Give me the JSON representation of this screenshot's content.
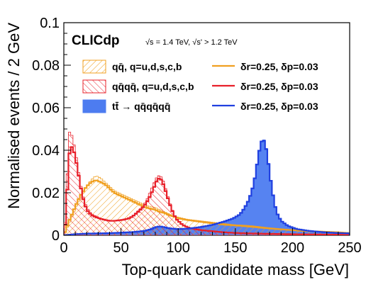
{
  "chart_data": {
    "type": "histogram",
    "title": "",
    "experiment_label": "CLICdp",
    "energy_text": "√s = 1.4 TeV, √s' > 1.2 TeV",
    "xlabel": "Top-quark candidate mass [GeV]",
    "ylabel": "Normalised events / 2 GeV",
    "xlim": [
      0,
      250
    ],
    "ylim": [
      0,
      0.1
    ],
    "bin_width": 2,
    "x_ticks": [
      0,
      50,
      100,
      150,
      200,
      250
    ],
    "x_tick_labels": [
      "0",
      "50",
      "100",
      "150",
      "200",
      "250"
    ],
    "y_ticks": [
      0,
      0.02,
      0.04,
      0.06,
      0.08,
      0.1
    ],
    "y_tick_labels": [
      "0",
      "0.02",
      "0.04",
      "0.06",
      "0.08",
      "0.1"
    ],
    "grid": false,
    "legend_position": "top",
    "legend": [
      {
        "label": "qq̄, q=u,d,s,c,b",
        "style": "hatch",
        "color": "#f0a020"
      },
      {
        "label": "qq̄qq̄, q=u,d,s,c,b",
        "style": "hatch",
        "color": "#e8202a"
      },
      {
        "label": "tt̄ → qq̄qq̄qq̄",
        "style": "fill",
        "color": "#4d7cf0"
      },
      {
        "label": "δr=0.25, δp=0.03",
        "style": "line",
        "color": "#f0a020"
      },
      {
        "label": "δr=0.25, δp=0.03",
        "style": "line",
        "color": "#e8202a"
      },
      {
        "label": "δr=0.25, δp=0.03",
        "style": "line",
        "color": "#2040e0"
      }
    ],
    "series": [
      {
        "name": "qq̄, q=u,d,s,c,b",
        "color": "#f0a020",
        "points": [
          [
            0,
            0.0
          ],
          [
            4,
            0.005
          ],
          [
            8,
            0.01
          ],
          [
            12,
            0.015
          ],
          [
            16,
            0.019
          ],
          [
            20,
            0.023
          ],
          [
            24,
            0.026
          ],
          [
            28,
            0.028
          ],
          [
            32,
            0.027
          ],
          [
            36,
            0.025
          ],
          [
            40,
            0.023
          ],
          [
            44,
            0.021
          ],
          [
            48,
            0.02
          ],
          [
            52,
            0.019
          ],
          [
            56,
            0.018
          ],
          [
            60,
            0.017
          ],
          [
            64,
            0.016
          ],
          [
            68,
            0.015
          ],
          [
            72,
            0.014
          ],
          [
            76,
            0.0135
          ],
          [
            80,
            0.013
          ],
          [
            84,
            0.012
          ],
          [
            88,
            0.011
          ],
          [
            92,
            0.01
          ],
          [
            96,
            0.009
          ],
          [
            100,
            0.0085
          ],
          [
            108,
            0.0075
          ],
          [
            116,
            0.007
          ],
          [
            124,
            0.0065
          ],
          [
            132,
            0.006
          ],
          [
            140,
            0.0055
          ],
          [
            148,
            0.005
          ],
          [
            156,
            0.0048
          ],
          [
            164,
            0.0045
          ],
          [
            172,
            0.004
          ],
          [
            180,
            0.0035
          ],
          [
            190,
            0.003
          ],
          [
            200,
            0.0026
          ],
          [
            210,
            0.0022
          ],
          [
            220,
            0.002
          ],
          [
            230,
            0.0018
          ],
          [
            240,
            0.0015
          ],
          [
            250,
            0.0012
          ]
        ],
        "line_points": [
          [
            0,
            0.0
          ],
          [
            4,
            0.006
          ],
          [
            8,
            0.011
          ],
          [
            12,
            0.016
          ],
          [
            16,
            0.02
          ],
          [
            20,
            0.023
          ],
          [
            24,
            0.025
          ],
          [
            28,
            0.026
          ],
          [
            32,
            0.025
          ],
          [
            36,
            0.024
          ],
          [
            40,
            0.022
          ],
          [
            44,
            0.02
          ],
          [
            48,
            0.019
          ],
          [
            52,
            0.018
          ],
          [
            56,
            0.017
          ],
          [
            60,
            0.016
          ],
          [
            64,
            0.015
          ],
          [
            68,
            0.014
          ],
          [
            72,
            0.013
          ],
          [
            76,
            0.0125
          ],
          [
            80,
            0.012
          ],
          [
            84,
            0.011
          ],
          [
            88,
            0.0105
          ],
          [
            92,
            0.0095
          ],
          [
            96,
            0.0088
          ],
          [
            100,
            0.008
          ],
          [
            108,
            0.0072
          ],
          [
            116,
            0.0066
          ],
          [
            124,
            0.006
          ],
          [
            132,
            0.0055
          ],
          [
            140,
            0.005
          ],
          [
            148,
            0.0047
          ],
          [
            156,
            0.0044
          ],
          [
            164,
            0.004
          ],
          [
            172,
            0.0036
          ],
          [
            180,
            0.0032
          ],
          [
            190,
            0.0028
          ],
          [
            200,
            0.0024
          ],
          [
            210,
            0.002
          ],
          [
            220,
            0.0018
          ],
          [
            230,
            0.0016
          ],
          [
            240,
            0.0014
          ],
          [
            250,
            0.001
          ]
        ]
      },
      {
        "name": "qq̄qq̄, q=u,d,s,c,b",
        "color": "#e8202a",
        "points": [
          [
            0,
            0.002
          ],
          [
            2,
            0.01
          ],
          [
            4,
            0.048
          ],
          [
            6,
            0.049
          ],
          [
            8,
            0.045
          ],
          [
            10,
            0.04
          ],
          [
            12,
            0.033
          ],
          [
            14,
            0.026
          ],
          [
            16,
            0.02
          ],
          [
            18,
            0.016
          ],
          [
            20,
            0.013
          ],
          [
            24,
            0.01
          ],
          [
            28,
            0.009
          ],
          [
            32,
            0.008
          ],
          [
            36,
            0.0075
          ],
          [
            40,
            0.007
          ],
          [
            44,
            0.007
          ],
          [
            48,
            0.0072
          ],
          [
            52,
            0.0075
          ],
          [
            56,
            0.008
          ],
          [
            60,
            0.009
          ],
          [
            64,
            0.011
          ],
          [
            68,
            0.013
          ],
          [
            72,
            0.016
          ],
          [
            76,
            0.021
          ],
          [
            80,
            0.026
          ],
          [
            82,
            0.028
          ],
          [
            84,
            0.028
          ],
          [
            86,
            0.027
          ],
          [
            88,
            0.024
          ],
          [
            90,
            0.02
          ],
          [
            94,
            0.013
          ],
          [
            98,
            0.008
          ],
          [
            104,
            0.005
          ],
          [
            110,
            0.0035
          ],
          [
            120,
            0.0025
          ],
          [
            130,
            0.002
          ],
          [
            140,
            0.0015
          ],
          [
            150,
            0.0012
          ],
          [
            160,
            0.001
          ],
          [
            170,
            0.0009
          ],
          [
            180,
            0.0008
          ],
          [
            200,
            0.0006
          ],
          [
            220,
            0.0004
          ],
          [
            250,
            0.0003
          ]
        ],
        "line_points": [
          [
            0,
            0.002
          ],
          [
            2,
            0.008
          ],
          [
            4,
            0.035
          ],
          [
            6,
            0.042
          ],
          [
            8,
            0.041
          ],
          [
            10,
            0.037
          ],
          [
            12,
            0.031
          ],
          [
            14,
            0.025
          ],
          [
            16,
            0.019
          ],
          [
            18,
            0.015
          ],
          [
            20,
            0.012
          ],
          [
            24,
            0.0095
          ],
          [
            28,
            0.0085
          ],
          [
            32,
            0.0078
          ],
          [
            36,
            0.0072
          ],
          [
            40,
            0.0068
          ],
          [
            44,
            0.0068
          ],
          [
            48,
            0.007
          ],
          [
            52,
            0.0073
          ],
          [
            56,
            0.0078
          ],
          [
            60,
            0.0088
          ],
          [
            64,
            0.0105
          ],
          [
            68,
            0.0125
          ],
          [
            72,
            0.015
          ],
          [
            76,
            0.019
          ],
          [
            80,
            0.024
          ],
          [
            82,
            0.0265
          ],
          [
            84,
            0.0268
          ],
          [
            86,
            0.0255
          ],
          [
            88,
            0.0225
          ],
          [
            90,
            0.019
          ],
          [
            94,
            0.0125
          ],
          [
            98,
            0.0078
          ],
          [
            104,
            0.0048
          ],
          [
            110,
            0.0034
          ],
          [
            120,
            0.0024
          ],
          [
            130,
            0.0019
          ],
          [
            140,
            0.0014
          ],
          [
            150,
            0.0011
          ],
          [
            160,
            0.0009
          ],
          [
            170,
            0.0008
          ],
          [
            180,
            0.0007
          ],
          [
            200,
            0.0005
          ],
          [
            220,
            0.0004
          ],
          [
            250,
            0.0002
          ]
        ]
      },
      {
        "name": "tt̄ → qq̄qq̄qq̄",
        "color": "#4d7cf0",
        "points": [
          [
            0,
            0.0
          ],
          [
            10,
            0.0005
          ],
          [
            20,
            0.0008
          ],
          [
            40,
            0.001
          ],
          [
            60,
            0.0015
          ],
          [
            70,
            0.002
          ],
          [
            76,
            0.003
          ],
          [
            80,
            0.004
          ],
          [
            84,
            0.0045
          ],
          [
            88,
            0.004
          ],
          [
            92,
            0.0035
          ],
          [
            100,
            0.003
          ],
          [
            110,
            0.0033
          ],
          [
            120,
            0.004
          ],
          [
            130,
            0.005
          ],
          [
            140,
            0.0065
          ],
          [
            148,
            0.008
          ],
          [
            154,
            0.01
          ],
          [
            158,
            0.013
          ],
          [
            162,
            0.017
          ],
          [
            166,
            0.024
          ],
          [
            168,
            0.03
          ],
          [
            170,
            0.037
          ],
          [
            172,
            0.043
          ],
          [
            174,
            0.046
          ],
          [
            176,
            0.044
          ],
          [
            178,
            0.038
          ],
          [
            180,
            0.03
          ],
          [
            182,
            0.022
          ],
          [
            184,
            0.016
          ],
          [
            186,
            0.011
          ],
          [
            190,
            0.007
          ],
          [
            196,
            0.0045
          ],
          [
            204,
            0.003
          ],
          [
            214,
            0.0022
          ],
          [
            226,
            0.0016
          ],
          [
            238,
            0.0012
          ],
          [
            250,
            0.001
          ]
        ],
        "line_points": [
          [
            0,
            0.0
          ],
          [
            10,
            0.0005
          ],
          [
            20,
            0.0008
          ],
          [
            40,
            0.001
          ],
          [
            60,
            0.0015
          ],
          [
            70,
            0.002
          ],
          [
            76,
            0.0028
          ],
          [
            80,
            0.0038
          ],
          [
            84,
            0.0042
          ],
          [
            88,
            0.0038
          ],
          [
            92,
            0.0033
          ],
          [
            100,
            0.0029
          ],
          [
            110,
            0.0032
          ],
          [
            120,
            0.0039
          ],
          [
            130,
            0.0049
          ],
          [
            140,
            0.0064
          ],
          [
            148,
            0.0079
          ],
          [
            154,
            0.0098
          ],
          [
            158,
            0.0128
          ],
          [
            162,
            0.0168
          ],
          [
            166,
            0.0238
          ],
          [
            168,
            0.0298
          ],
          [
            170,
            0.0368
          ],
          [
            172,
            0.0428
          ],
          [
            174,
            0.0455
          ],
          [
            176,
            0.0435
          ],
          [
            178,
            0.0375
          ],
          [
            180,
            0.0295
          ],
          [
            182,
            0.0218
          ],
          [
            184,
            0.0158
          ],
          [
            186,
            0.0108
          ],
          [
            190,
            0.0068
          ],
          [
            196,
            0.0044
          ],
          [
            204,
            0.0029
          ],
          [
            214,
            0.0021
          ],
          [
            226,
            0.0015
          ],
          [
            238,
            0.0011
          ],
          [
            250,
            0.0009
          ]
        ]
      }
    ]
  }
}
